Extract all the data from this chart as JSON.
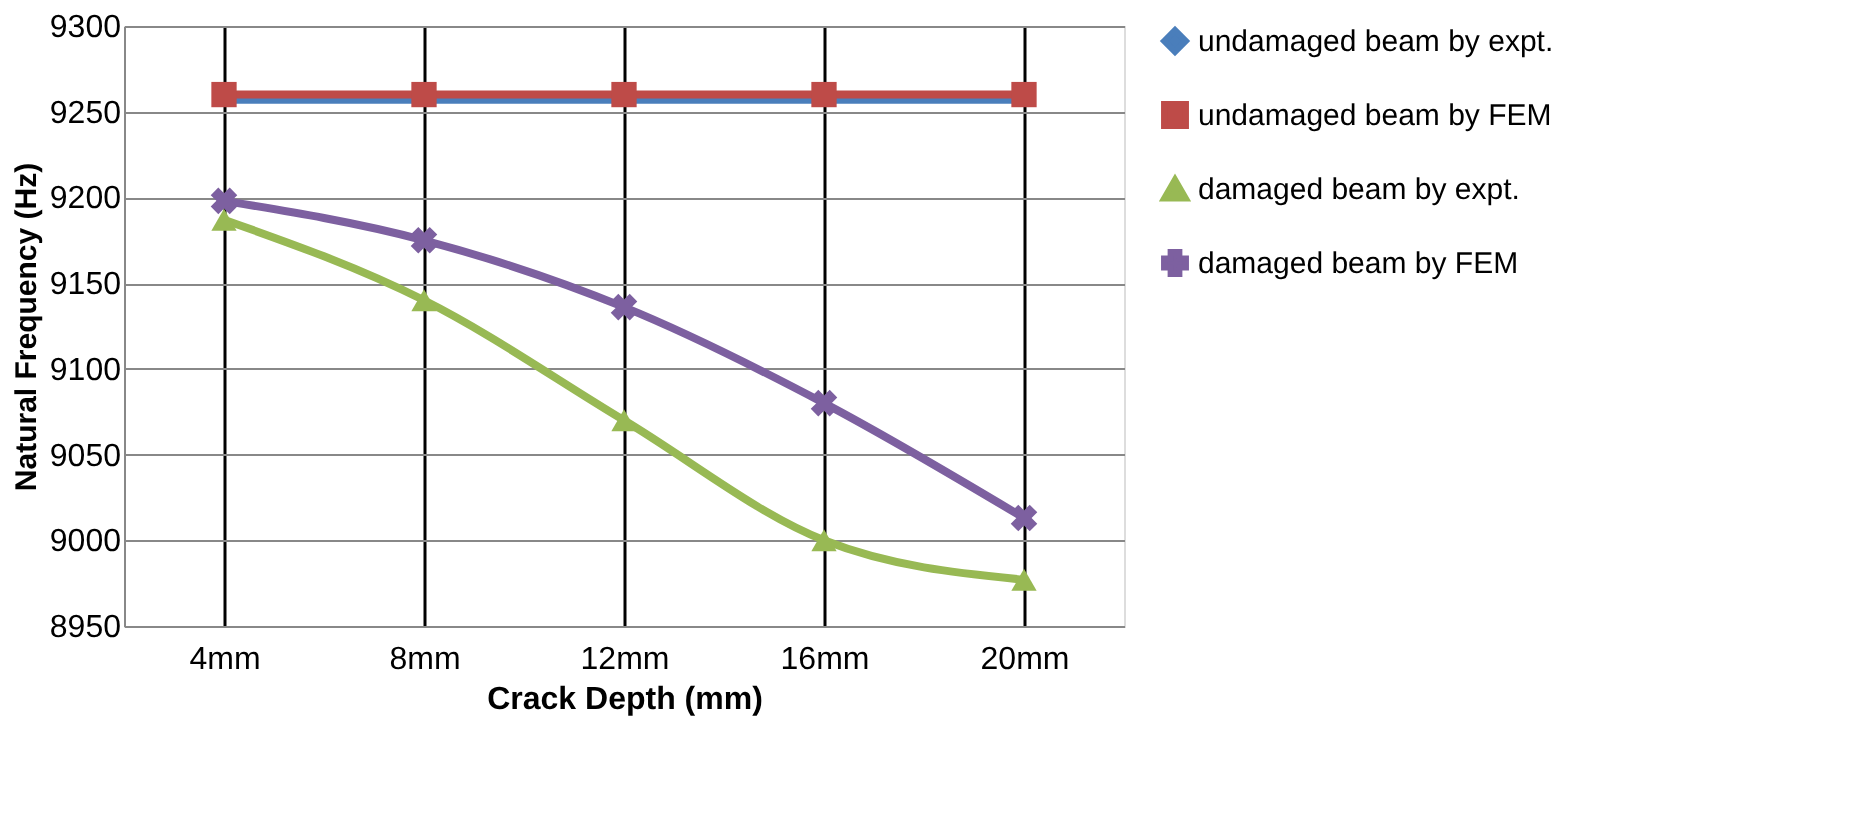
{
  "chart_data": {
    "type": "line",
    "xlabel": "Crack Depth (mm)",
    "ylabel": "Natural Frequency (Hz)",
    "categories": [
      "4mm",
      "8mm",
      "12mm",
      "16mm",
      "20mm"
    ],
    "series": [
      {
        "name": "undamaged beam by expt.",
        "color": "#4a7ebb",
        "marker": "diamond",
        "values": [
          9257,
          9257,
          9257,
          9257,
          9257
        ]
      },
      {
        "name": "undamaged beam by FEM",
        "color": "#be4b48",
        "marker": "square",
        "values": [
          9260,
          9260,
          9260,
          9260,
          9260
        ]
      },
      {
        "name": "damaged beam by expt.",
        "color": "#98b954",
        "marker": "triangle",
        "values": [
          9187,
          9140,
          9070,
          9000,
          8977
        ]
      },
      {
        "name": "damaged beam by FEM",
        "color": "#7d60a0",
        "marker": "cross",
        "values": [
          9198,
          9175,
          9136,
          9080,
          9013
        ]
      }
    ],
    "ylim": [
      8950,
      9300
    ],
    "yticks": [
      8950,
      9000,
      9050,
      9100,
      9150,
      9200,
      9250,
      9300
    ],
    "grid": true,
    "legend": "right",
    "line_style": "solid"
  }
}
